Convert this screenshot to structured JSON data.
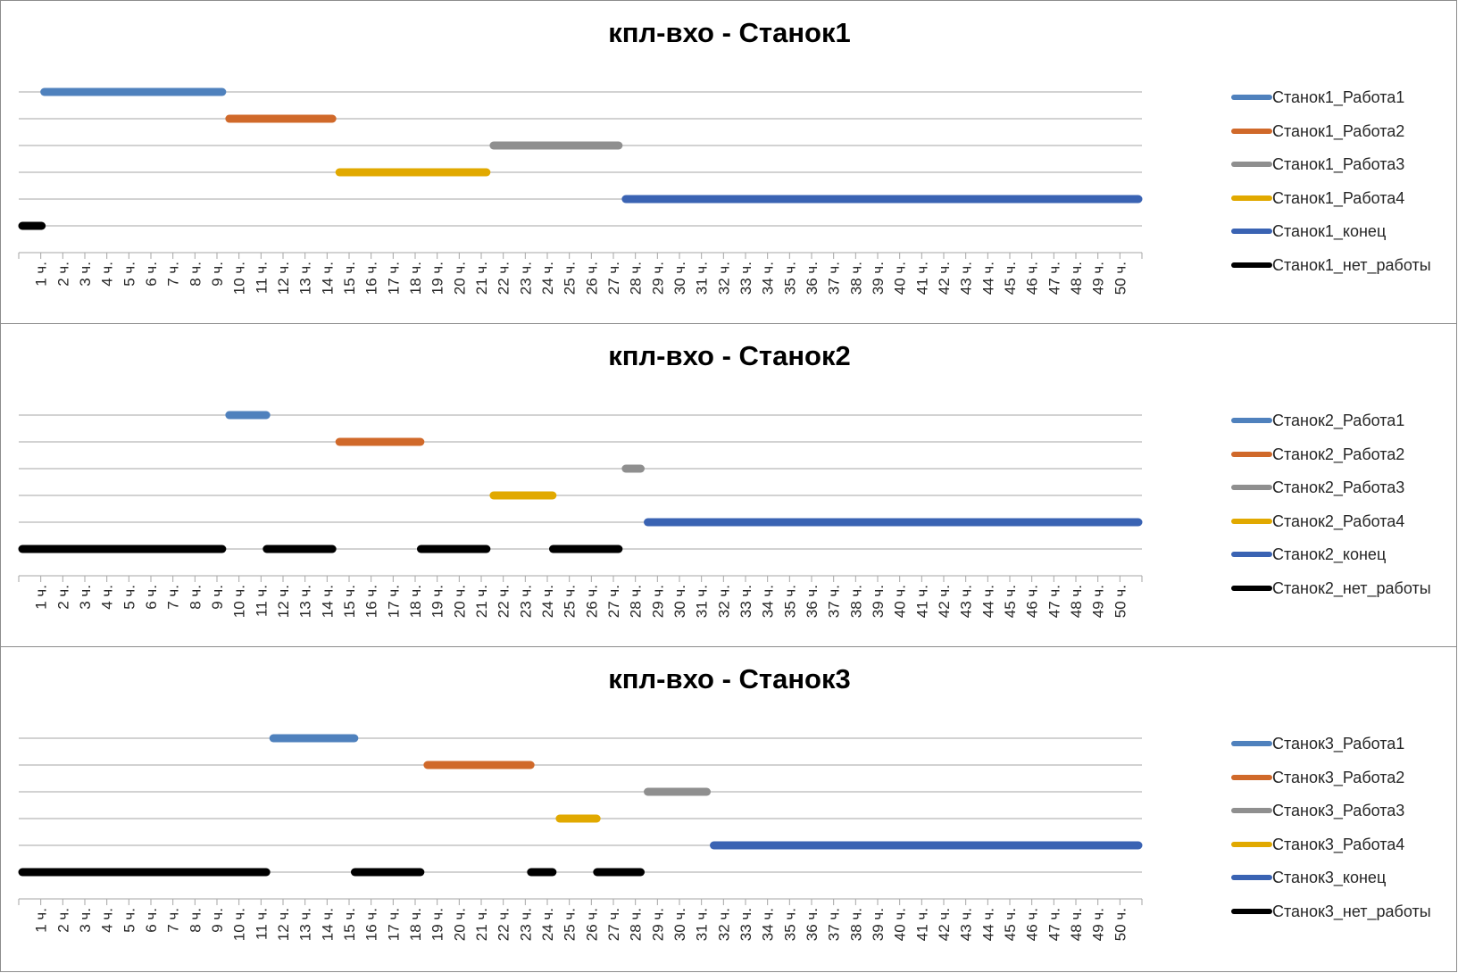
{
  "chart_data": [
    {
      "type": "gantt",
      "title": "кпл-вхо - Станок1",
      "x_tick_labels": [
        "1 ч.",
        "2 ч.",
        "3 ч.",
        "4 ч.",
        "5 ч.",
        "6 ч.",
        "7 ч.",
        "8 ч.",
        "9 ч.",
        "10 ч.",
        "11 ч.",
        "12 ч.",
        "13 ч.",
        "14 ч.",
        "15 ч.",
        "16 ч.",
        "17 ч.",
        "18 ч.",
        "19 ч.",
        "20 ч.",
        "21 ч.",
        "22 ч.",
        "23 ч.",
        "24 ч.",
        "25 ч.",
        "26 ч.",
        "27 ч.",
        "28 ч.",
        "29 ч.",
        "30 ч.",
        "31 ч.",
        "32 ч.",
        "33 ч.",
        "34 ч.",
        "35 ч.",
        "36 ч.",
        "37 ч.",
        "38 ч.",
        "39 ч.",
        "40 ч.",
        "41 ч.",
        "42 ч.",
        "43 ч.",
        "44 ч.",
        "45 ч.",
        "46 ч.",
        "47 ч.",
        "48 ч.",
        "49 ч.",
        "50 ч."
      ],
      "xlim": [
        0,
        51
      ],
      "grid": true,
      "legend_position": "right",
      "series": [
        {
          "name": "Станок1_Работа1",
          "color": "#4f81bd",
          "segments": [
            [
              1,
              9.4
            ]
          ]
        },
        {
          "name": "Станок1_Работа2",
          "color": "#d0692a",
          "segments": [
            [
              9.4,
              14.4
            ]
          ]
        },
        {
          "name": "Станок1_Работа3",
          "color": "#8f8f8f",
          "segments": [
            [
              21.4,
              27.4
            ]
          ]
        },
        {
          "name": "Станок1_Работа4",
          "color": "#e1a900",
          "segments": [
            [
              14.4,
              21.4
            ]
          ]
        },
        {
          "name": "Станок1_конец",
          "color": "#3a63b3",
          "segments": [
            [
              27.4,
              51
            ]
          ]
        },
        {
          "name": "Станок1_нет_работы",
          "color": "#000000",
          "segments": [
            [
              0,
              1.2
            ]
          ]
        }
      ]
    },
    {
      "type": "gantt",
      "title": "кпл-вхо - Станок2",
      "x_tick_labels": [
        "1 ч.",
        "2 ч.",
        "3 ч.",
        "4 ч.",
        "5 ч.",
        "6 ч.",
        "7 ч.",
        "8 ч.",
        "9 ч.",
        "10 ч.",
        "11 ч.",
        "12 ч.",
        "13 ч.",
        "14 ч.",
        "15 ч.",
        "16 ч.",
        "17 ч.",
        "18 ч.",
        "19 ч.",
        "20 ч.",
        "21 ч.",
        "22 ч.",
        "23 ч.",
        "24 ч.",
        "25 ч.",
        "26 ч.",
        "27 ч.",
        "28 ч.",
        "29 ч.",
        "30 ч.",
        "31 ч.",
        "32 ч.",
        "33 ч.",
        "34 ч.",
        "35 ч.",
        "36 ч.",
        "37 ч.",
        "38 ч.",
        "39 ч.",
        "40 ч.",
        "41 ч.",
        "42 ч.",
        "43 ч.",
        "44 ч.",
        "45 ч.",
        "46 ч.",
        "47 ч.",
        "48 ч.",
        "49 ч.",
        "50 ч."
      ],
      "xlim": [
        0,
        51
      ],
      "grid": true,
      "legend_position": "right",
      "series": [
        {
          "name": "Станок2_Работа1",
          "color": "#4f81bd",
          "segments": [
            [
              9.4,
              11.4
            ]
          ]
        },
        {
          "name": "Станок2_Работа2",
          "color": "#d0692a",
          "segments": [
            [
              14.4,
              18.4
            ]
          ]
        },
        {
          "name": "Станок2_Работа3",
          "color": "#8f8f8f",
          "segments": [
            [
              27.4,
              28.4
            ]
          ]
        },
        {
          "name": "Станок2_Работа4",
          "color": "#e1a900",
          "segments": [
            [
              21.4,
              24.4
            ]
          ]
        },
        {
          "name": "Станок2_конец",
          "color": "#3a63b3",
          "segments": [
            [
              28.4,
              51
            ]
          ]
        },
        {
          "name": "Станок2_нет_работы",
          "color": "#000000",
          "segments": [
            [
              0,
              9.4
            ],
            [
              11.1,
              14.4
            ],
            [
              18.1,
              21.4
            ],
            [
              24.1,
              27.4
            ]
          ]
        }
      ]
    },
    {
      "type": "gantt",
      "title": "кпл-вхо - Станок3",
      "x_tick_labels": [
        "1 ч.",
        "2 ч.",
        "3 ч.",
        "4 ч.",
        "5 ч.",
        "6 ч.",
        "7 ч.",
        "8 ч.",
        "9 ч.",
        "10 ч.",
        "11 ч.",
        "12 ч.",
        "13 ч.",
        "14 ч.",
        "15 ч.",
        "16 ч.",
        "17 ч.",
        "18 ч.",
        "19 ч.",
        "20 ч.",
        "21 ч.",
        "22 ч.",
        "23 ч.",
        "24 ч.",
        "25 ч.",
        "26 ч.",
        "27 ч.",
        "28 ч.",
        "29 ч.",
        "30 ч.",
        "31 ч.",
        "32 ч.",
        "33 ч.",
        "34 ч.",
        "35 ч.",
        "36 ч.",
        "37 ч.",
        "38 ч.",
        "39 ч.",
        "40 ч.",
        "41 ч.",
        "42 ч.",
        "43 ч.",
        "44 ч.",
        "45 ч.",
        "46 ч.",
        "47 ч.",
        "48 ч.",
        "49 ч.",
        "50 ч."
      ],
      "xlim": [
        0,
        51
      ],
      "grid": true,
      "legend_position": "right",
      "series": [
        {
          "name": "Станок3_Работа1",
          "color": "#4f81bd",
          "segments": [
            [
              11.4,
              15.4
            ]
          ]
        },
        {
          "name": "Станок3_Работа2",
          "color": "#d0692a",
          "segments": [
            [
              18.4,
              23.4
            ]
          ]
        },
        {
          "name": "Станок3_Работа3",
          "color": "#8f8f8f",
          "segments": [
            [
              28.4,
              31.4
            ]
          ]
        },
        {
          "name": "Станок3_Работа4",
          "color": "#e1a900",
          "segments": [
            [
              24.4,
              26.4
            ]
          ]
        },
        {
          "name": "Станок3_конец",
          "color": "#3a63b3",
          "segments": [
            [
              31.4,
              51
            ]
          ]
        },
        {
          "name": "Станок3_нет_работы",
          "color": "#000000",
          "segments": [
            [
              0,
              11.4
            ],
            [
              15.1,
              18.4
            ],
            [
              23.1,
              24.4
            ],
            [
              26.1,
              28.4
            ]
          ]
        }
      ]
    }
  ]
}
